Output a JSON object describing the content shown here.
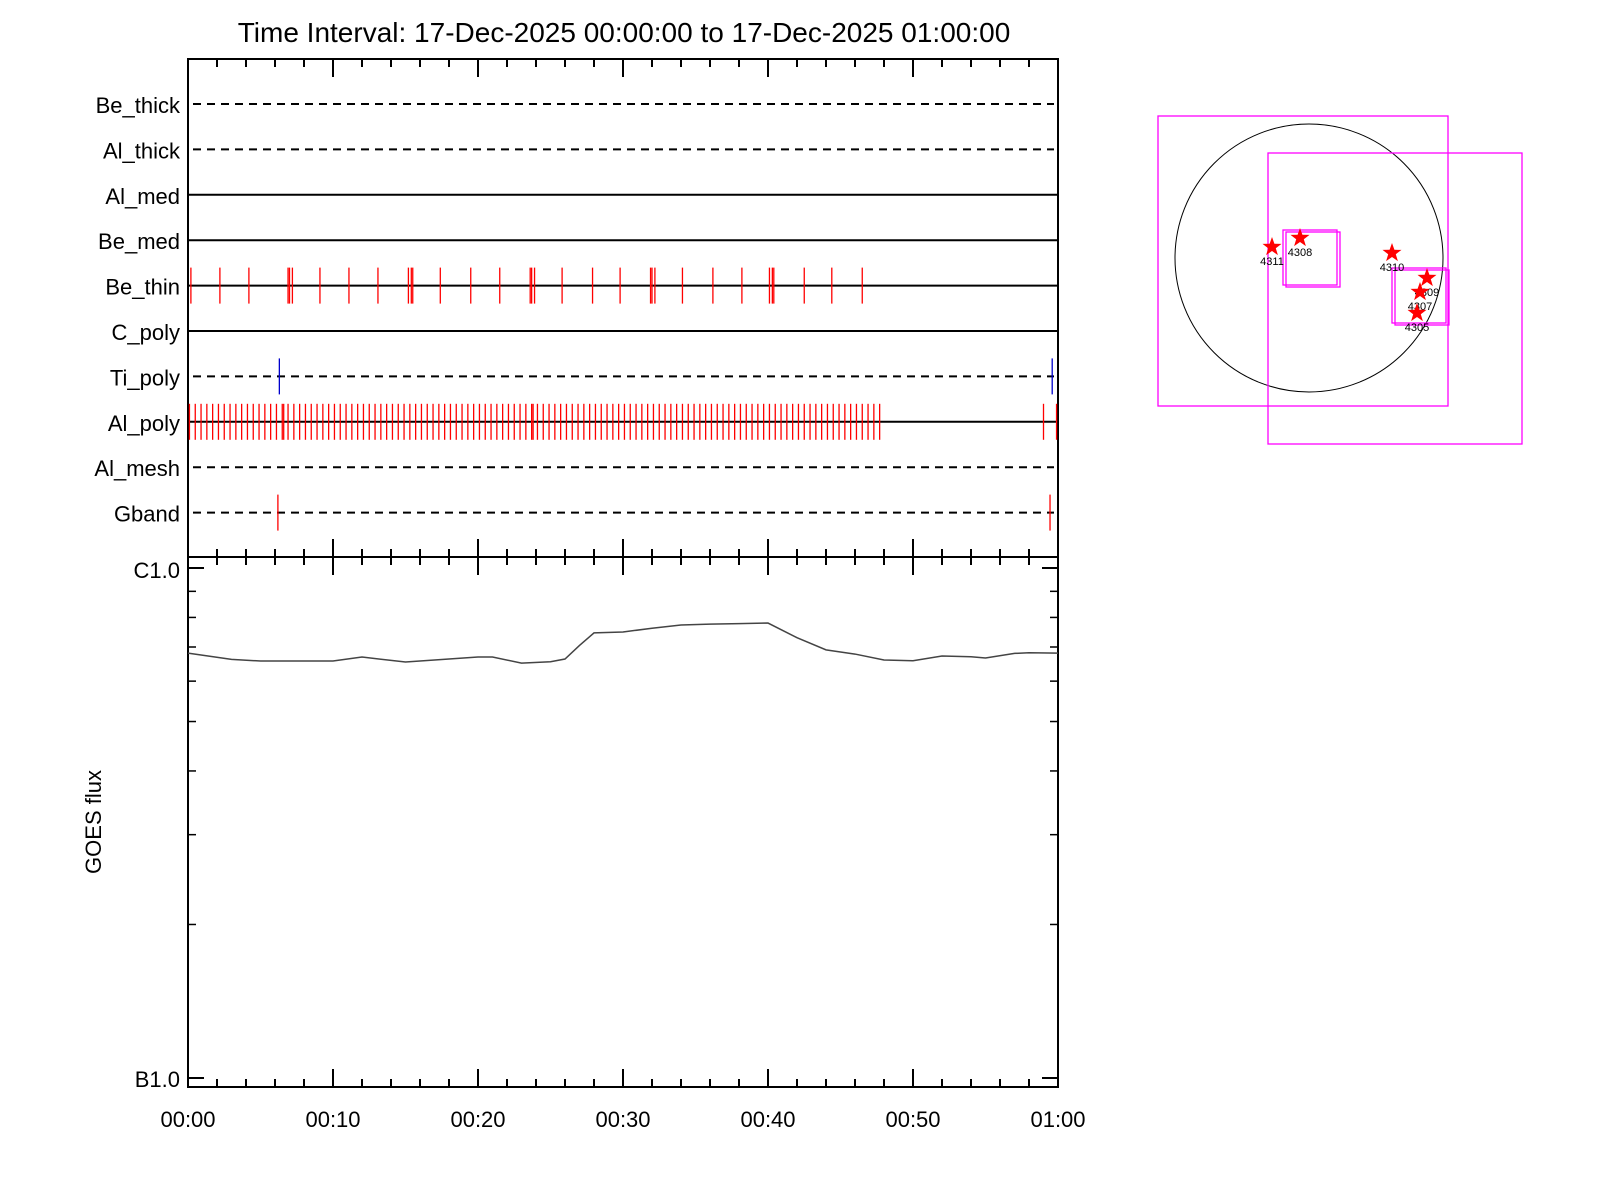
{
  "chart_data": [
    {
      "type": "timeline",
      "title": "Time Interval: 17-Dec-2025 00:00:00 to 17-Dec-2025 01:00:00",
      "x_unit": "minutes after 00:00",
      "xlim": [
        0,
        60
      ],
      "rows": [
        {
          "name": "Be_thick",
          "style": "dashed",
          "events": []
        },
        {
          "name": "Al_thick",
          "style": "dashed",
          "events": []
        },
        {
          "name": "Al_med",
          "style": "solid",
          "events": []
        },
        {
          "name": "Be_med",
          "style": "solid",
          "events": []
        },
        {
          "name": "Be_thin",
          "style": "solid",
          "color": "#ff0000",
          "events": [
            0.2,
            2.2,
            4.2,
            6.9,
            7.0,
            7.2,
            9.1,
            11.1,
            13.1,
            15.2,
            15.4,
            15.5,
            17.4,
            19.5,
            21.5,
            23.6,
            23.7,
            23.9,
            25.8,
            27.9,
            29.8,
            31.9,
            32.0,
            32.2,
            34.1,
            36.2,
            38.2,
            40.1,
            40.3,
            40.4,
            42.5,
            44.4,
            46.5
          ]
        },
        {
          "name": "C_poly",
          "style": "solid",
          "events": []
        },
        {
          "name": "Ti_poly",
          "style": "dashed",
          "color": "#0000cc",
          "events": [
            6.3,
            59.6
          ]
        },
        {
          "name": "Al_poly",
          "style": "solid",
          "color": "#ff0000",
          "events": [
            0.1,
            0.5,
            0.9,
            1.3,
            1.7,
            2.1,
            2.5,
            2.9,
            3.3,
            3.7,
            4.1,
            4.5,
            4.9,
            5.3,
            5.7,
            6.1,
            6.5,
            6.6,
            6.9,
            7.3,
            7.7,
            8.1,
            8.5,
            8.9,
            9.3,
            9.7,
            10.1,
            10.5,
            10.9,
            11.3,
            11.7,
            12.1,
            12.5,
            12.9,
            13.3,
            13.7,
            14.1,
            14.5,
            14.9,
            15.3,
            15.7,
            16.1,
            16.5,
            16.9,
            17.3,
            17.7,
            18.1,
            18.5,
            18.9,
            19.3,
            19.7,
            20.1,
            20.5,
            20.9,
            21.3,
            21.7,
            22.1,
            22.5,
            22.9,
            23.3,
            23.7,
            23.8,
            24.1,
            24.5,
            24.9,
            25.3,
            25.7,
            26.1,
            26.5,
            26.9,
            27.3,
            27.7,
            28.1,
            28.5,
            28.9,
            29.3,
            29.7,
            30.1,
            30.5,
            30.9,
            31.3,
            31.7,
            32.1,
            32.5,
            32.9,
            33.3,
            33.7,
            34.1,
            34.5,
            34.9,
            35.3,
            35.7,
            36.1,
            36.5,
            36.9,
            37.3,
            37.7,
            38.1,
            38.5,
            38.9,
            39.3,
            39.7,
            40.1,
            40.5,
            40.9,
            41.3,
            41.7,
            42.1,
            42.5,
            42.9,
            43.3,
            43.7,
            44.1,
            44.5,
            44.9,
            45.3,
            45.7,
            46.1,
            46.5,
            46.9,
            47.3,
            47.7,
            59.0,
            59.9
          ]
        },
        {
          "name": "Al_mesh",
          "style": "dashed",
          "events": []
        },
        {
          "name": "Gband",
          "style": "dashed",
          "color": "#ff0000",
          "events": [
            6.2,
            59.45
          ]
        }
      ]
    },
    {
      "type": "line",
      "ylabel": "GOES flux",
      "yscale": "log",
      "ylim": [
        1e-06,
        1e-05
      ],
      "ytick_labels": [
        "B1.0",
        "C1.0"
      ],
      "xtick_labels": [
        "00:00",
        "00:10",
        "00:20",
        "00:30",
        "00:40",
        "00:50",
        "01:00"
      ],
      "xlim": [
        0,
        60
      ],
      "x": [
        0,
        3,
        5,
        8,
        10,
        12,
        15,
        18,
        20,
        21,
        23,
        25,
        26,
        27,
        28,
        30,
        32,
        34,
        36,
        38,
        40,
        42,
        44,
        46,
        48,
        50,
        52,
        54,
        55,
        57,
        58,
        60
      ],
      "y": [
        6.81e-06,
        6.62e-06,
        6.57e-06,
        6.57e-06,
        6.57e-06,
        6.69e-06,
        6.54e-06,
        6.63e-06,
        6.69e-06,
        6.69e-06,
        6.51e-06,
        6.55e-06,
        6.63e-06,
        7.05e-06,
        7.46e-06,
        7.49e-06,
        7.62e-06,
        7.73e-06,
        7.76e-06,
        7.78e-06,
        7.8e-06,
        7.3e-06,
        6.91e-06,
        6.78e-06,
        6.6e-06,
        6.58e-06,
        6.72e-06,
        6.7e-06,
        6.66e-06,
        6.8e-06,
        6.82e-06,
        6.81e-06
      ],
      "color": "#444444"
    },
    {
      "type": "scatter",
      "description_labels": [
        "4311",
        "4308",
        "4310",
        "4309",
        "4307",
        "4305"
      ],
      "marker_color": "#ff0000",
      "box_color": "#ff00ff"
    }
  ]
}
